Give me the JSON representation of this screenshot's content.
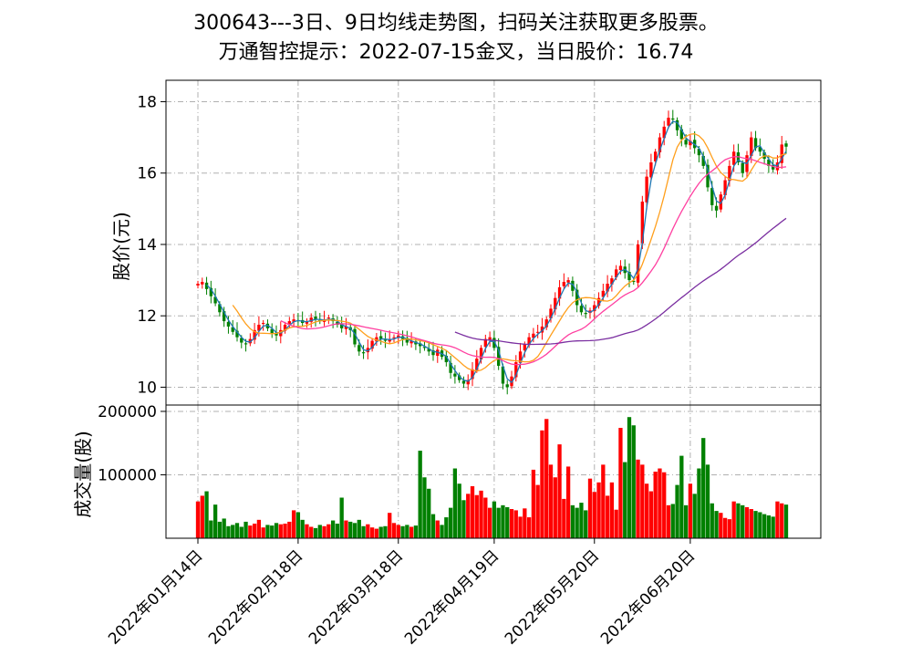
{
  "chart_data": {
    "type": "candlestick",
    "title_lines": [
      "300643---3日、9日均线走势图，扫码关注获取更多股票。",
      "万通智控提示：2022-07-15金叉，当日股价：16.74"
    ],
    "price_panel": {
      "ylabel": "股价(元)",
      "ylim": [
        9.5,
        18.6
      ],
      "yticks": [
        10,
        12,
        14,
        16,
        18
      ],
      "grid": true
    },
    "volume_panel": {
      "ylabel": "成交量(股)",
      "ylim": [
        0,
        210000
      ],
      "yticks": [
        100000,
        200000
      ],
      "grid": true
    },
    "x_tick_labels": [
      "2022年01月14日",
      "2022年02月18日",
      "2022年03月18日",
      "2022年04月19日",
      "2022年05月20日",
      "2022年06月20日"
    ],
    "x_tick_indices": [
      0,
      23,
      46,
      68,
      91,
      113
    ],
    "n_points": 136,
    "close": [
      12.9,
      12.95,
      12.75,
      12.55,
      12.35,
      12.1,
      11.85,
      11.7,
      11.55,
      11.4,
      11.25,
      11.2,
      11.35,
      11.6,
      11.75,
      11.8,
      11.65,
      11.5,
      11.45,
      11.6,
      11.75,
      11.85,
      11.9,
      11.85,
      11.8,
      11.85,
      11.95,
      11.9,
      11.85,
      11.9,
      11.95,
      11.85,
      11.75,
      11.65,
      11.7,
      11.6,
      11.2,
      11.0,
      10.95,
      11.1,
      11.3,
      11.4,
      11.35,
      11.3,
      11.35,
      11.4,
      11.45,
      11.35,
      11.25,
      11.3,
      11.2,
      11.15,
      11.1,
      11.0,
      10.9,
      11.05,
      10.85,
      10.7,
      10.4,
      10.3,
      10.2,
      10.1,
      10.2,
      10.5,
      10.8,
      11.1,
      11.35,
      11.4,
      11.1,
      10.6,
      10.1,
      10.0,
      10.3,
      10.7,
      11.0,
      11.2,
      11.4,
      11.5,
      11.55,
      11.7,
      11.9,
      12.2,
      12.5,
      12.8,
      12.95,
      13.0,
      12.7,
      12.3,
      12.1,
      12.05,
      12.15,
      12.3,
      12.5,
      12.7,
      12.9,
      13.05,
      13.3,
      13.4,
      13.2,
      13.0,
      12.95,
      14.0,
      15.2,
      15.9,
      16.3,
      16.6,
      17.0,
      17.3,
      17.55,
      17.5,
      17.2,
      16.95,
      16.8,
      16.9,
      16.7,
      16.5,
      16.2,
      15.6,
      15.1,
      14.95,
      15.4,
      15.8,
      16.2,
      16.6,
      16.3,
      16.0,
      16.5,
      17.0,
      16.7,
      16.6,
      16.4,
      16.2,
      16.1,
      16.3,
      16.8,
      16.74
    ],
    "volume": [
      58000,
      67000,
      74000,
      28000,
      53000,
      26000,
      31000,
      19000,
      21000,
      24000,
      18000,
      26000,
      20000,
      23000,
      29000,
      17000,
      21000,
      20000,
      24000,
      22000,
      23000,
      26000,
      44000,
      41000,
      29000,
      22000,
      18000,
      16000,
      21000,
      19000,
      22000,
      28000,
      23000,
      64000,
      28000,
      26000,
      24000,
      29000,
      19000,
      22000,
      17000,
      15000,
      18000,
      19000,
      40000,
      24000,
      21000,
      19000,
      21000,
      18000,
      20000,
      138000,
      96000,
      78000,
      38000,
      28000,
      21000,
      33000,
      48000,
      110000,
      86000,
      60000,
      70000,
      82000,
      68000,
      75000,
      64000,
      48000,
      58000,
      48000,
      52000,
      49000,
      46000,
      44000,
      34000,
      47000,
      33000,
      108000,
      84000,
      170000,
      188000,
      116000,
      96000,
      148000,
      62000,
      113000,
      52000,
      48000,
      56000,
      44000,
      94000,
      73000,
      88000,
      116000,
      67000,
      88000,
      45000,
      174000,
      120000,
      191000,
      178000,
      124000,
      116000,
      86000,
      74000,
      105000,
      110000,
      104000,
      52000,
      54000,
      84000,
      130000,
      52000,
      86000,
      70000,
      110000,
      158000,
      116000,
      55000,
      43000,
      40000,
      32000,
      30000,
      58000,
      55000,
      52000,
      49000,
      46000,
      43000,
      41000,
      38000,
      36000,
      34000,
      58000,
      55000,
      53000
    ],
    "ma_series": [
      {
        "color": "#1f77b4",
        "window": 3
      },
      {
        "color": "#ff9f1c",
        "window": 9
      },
      {
        "color": "#ff3fa0",
        "window": 20
      },
      {
        "color": "#7a2ea0",
        "window": 60
      }
    ],
    "colors": {
      "up": "#ff0000",
      "down": "#008000"
    }
  }
}
